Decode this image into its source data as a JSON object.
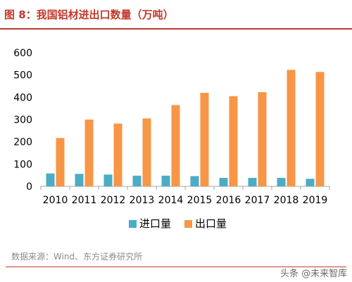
{
  "title": "图 8：我国铝材进出口数量（万吨）",
  "source": "数据来源：Wind、东方证券研究所",
  "watermark": "头条 @未来智库",
  "colors": {
    "title": "#c0392b",
    "import": "#4bacc6",
    "export": "#f79646",
    "rule": "#c0392b"
  },
  "chart_data": {
    "type": "bar",
    "categories": [
      "2010",
      "2011",
      "2012",
      "2013",
      "2014",
      "2015",
      "2016",
      "2017",
      "2018",
      "2019"
    ],
    "series": [
      {
        "name": "进口量",
        "values": [
          58,
          56,
          53,
          48,
          48,
          46,
          38,
          38,
          38,
          34
        ]
      },
      {
        "name": "出口量",
        "values": [
          217,
          300,
          282,
          305,
          365,
          420,
          405,
          423,
          523,
          514
        ]
      }
    ],
    "ylim": [
      0,
      600
    ],
    "yticks": [
      0,
      100,
      200,
      300,
      400,
      500,
      600
    ],
    "xlabel": "",
    "ylabel": "",
    "grid": false,
    "legend": "bottom"
  }
}
